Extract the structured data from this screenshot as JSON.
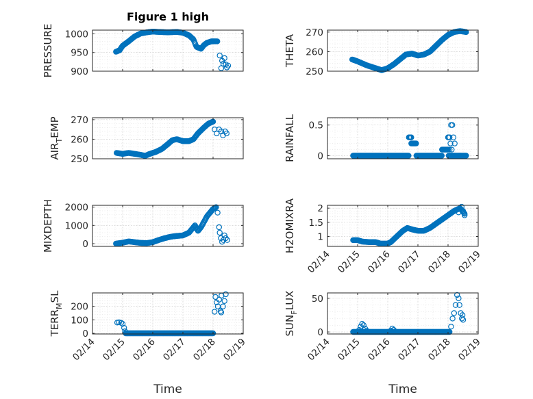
{
  "figure": {
    "title": "Figure 1 high",
    "marker_color": "#0072BD",
    "xlabel": "Time"
  },
  "chart_data": [
    {
      "type": "scatter",
      "name": "pressure-panel",
      "ylabel": "PRESSURE",
      "ylim": [
        900,
        1010
      ],
      "yticks": [
        900,
        950,
        1000
      ],
      "ytick_labels": [
        "900",
        "950",
        "1000"
      ],
      "xlim": [
        0,
        5
      ],
      "xticks": [
        0,
        1,
        2,
        3,
        4,
        5
      ],
      "xtick_labels": [
        "02/14",
        "02/15",
        "02/16",
        "02/17",
        "02/18",
        "02/19"
      ],
      "show_xticklabels": false,
      "title": "Figure 1 high",
      "grid": true,
      "anchors": [
        [
          0.78,
          952
        ],
        [
          0.9,
          956
        ],
        [
          1.0,
          968
        ],
        [
          1.2,
          980
        ],
        [
          1.4,
          993
        ],
        [
          1.6,
          1001
        ],
        [
          1.8,
          1004
        ],
        [
          2.0,
          1006
        ],
        [
          2.2,
          1005
        ],
        [
          2.5,
          1004
        ],
        [
          2.8,
          1005
        ],
        [
          3.0,
          1003
        ],
        [
          3.2,
          996
        ],
        [
          3.35,
          985
        ],
        [
          3.45,
          965
        ],
        [
          3.6,
          960
        ],
        [
          3.7,
          970
        ],
        [
          3.8,
          976
        ],
        [
          3.95,
          980
        ],
        [
          4.15,
          980
        ]
      ],
      "step": 0.02,
      "extra_points": [
        [
          4.22,
          942
        ],
        [
          4.27,
          908
        ],
        [
          4.3,
          928
        ],
        [
          4.34,
          920
        ],
        [
          4.38,
          935
        ],
        [
          4.42,
          918
        ],
        [
          4.46,
          910
        ],
        [
          4.5,
          915
        ]
      ]
    },
    {
      "type": "scatter",
      "name": "theta-panel",
      "ylabel": "THETA",
      "ylim": [
        250,
        271
      ],
      "yticks": [
        250,
        260,
        270
      ],
      "ytick_labels": [
        "250",
        "260",
        "270"
      ],
      "xlim": [
        0,
        5
      ],
      "xticks": [
        0,
        1,
        2,
        3,
        4,
        5
      ],
      "xtick_labels": [
        "02/14",
        "02/15",
        "02/16",
        "02/17",
        "02/18",
        "02/19"
      ],
      "show_xticklabels": false,
      "grid": true,
      "anchors": [
        [
          0.82,
          256
        ],
        [
          1.0,
          255
        ],
        [
          1.3,
          253
        ],
        [
          1.6,
          251.5
        ],
        [
          1.8,
          250.5
        ],
        [
          2.0,
          251.5
        ],
        [
          2.2,
          253.5
        ],
        [
          2.4,
          256
        ],
        [
          2.6,
          258.5
        ],
        [
          2.8,
          259
        ],
        [
          3.0,
          258
        ],
        [
          3.2,
          258.5
        ],
        [
          3.4,
          260
        ],
        [
          3.6,
          263
        ],
        [
          3.8,
          266
        ],
        [
          4.0,
          268.5
        ],
        [
          4.2,
          270
        ],
        [
          4.4,
          270.5
        ],
        [
          4.6,
          270
        ]
      ],
      "step": 0.02,
      "extra_points": []
    },
    {
      "type": "scatter",
      "name": "air-temp-panel",
      "ylabel": "AIR",
      "ylabel_sub": "T",
      "ylabel_tail": "EMP",
      "ylim": [
        250,
        271
      ],
      "yticks": [
        250,
        260,
        270
      ],
      "ytick_labels": [
        "250",
        "260",
        "270"
      ],
      "xlim": [
        0,
        5
      ],
      "xticks": [
        0,
        1,
        2,
        3,
        4,
        5
      ],
      "xtick_labels": [
        "02/14",
        "02/15",
        "02/16",
        "02/17",
        "02/18",
        "02/19"
      ],
      "show_xticklabels": false,
      "grid": true,
      "anchors": [
        [
          0.8,
          253
        ],
        [
          1.0,
          252.5
        ],
        [
          1.2,
          253
        ],
        [
          1.4,
          252.5
        ],
        [
          1.6,
          252
        ],
        [
          1.75,
          251.5
        ],
        [
          1.9,
          252.5
        ],
        [
          2.1,
          253.5
        ],
        [
          2.3,
          255
        ],
        [
          2.5,
          257.5
        ],
        [
          2.65,
          259.5
        ],
        [
          2.8,
          260
        ],
        [
          3.0,
          259
        ],
        [
          3.2,
          259
        ],
        [
          3.35,
          260
        ],
        [
          3.5,
          263
        ],
        [
          3.7,
          266
        ],
        [
          3.85,
          268
        ],
        [
          4.0,
          269
        ]
      ],
      "step": 0.02,
      "extra_points": [
        [
          4.05,
          265
        ],
        [
          4.12,
          263
        ],
        [
          4.2,
          265
        ],
        [
          4.27,
          264
        ],
        [
          4.33,
          262
        ],
        [
          4.4,
          264
        ],
        [
          4.45,
          263
        ]
      ]
    },
    {
      "type": "scatter",
      "name": "rainfall-panel",
      "ylabel": "RAINFALL",
      "ylim": [
        -0.05,
        0.62
      ],
      "yticks": [
        0,
        0.5
      ],
      "ytick_labels": [
        "0",
        "0.5"
      ],
      "xlim": [
        0,
        5
      ],
      "xticks": [
        0,
        1,
        2,
        3,
        4,
        5
      ],
      "xtick_labels": [
        "02/14",
        "02/15",
        "02/16",
        "02/17",
        "02/18",
        "02/19"
      ],
      "show_xticklabels": false,
      "grid": true,
      "anchors": [],
      "segments": [
        [
          0.85,
          2.7,
          0
        ],
        [
          2.7,
          2.78,
          0.3
        ],
        [
          2.78,
          2.95,
          0.2
        ],
        [
          2.95,
          3.8,
          0
        ],
        [
          3.8,
          4.0,
          0.1
        ],
        [
          4.0,
          4.02,
          0.3
        ],
        [
          4.02,
          4.2,
          0
        ],
        [
          4.2,
          4.4,
          0
        ],
        [
          4.4,
          4.6,
          0
        ]
      ],
      "step": 0.02,
      "extra_points": [
        [
          4.05,
          0.3
        ],
        [
          4.1,
          0.5
        ],
        [
          4.14,
          0.5
        ],
        [
          4.08,
          0.2
        ],
        [
          4.18,
          0.3
        ],
        [
          4.22,
          0.2
        ],
        [
          4.05,
          0.1
        ],
        [
          4.12,
          0.1
        ]
      ]
    },
    {
      "type": "scatter",
      "name": "mixdepth-panel",
      "ylabel": "MIXDEPTH",
      "ylim": [
        -150,
        2100
      ],
      "yticks": [
        0,
        1000,
        2000
      ],
      "ytick_labels": [
        "0",
        "1000",
        "2000"
      ],
      "xlim": [
        0,
        5
      ],
      "xticks": [
        0,
        1,
        2,
        3,
        4,
        5
      ],
      "xtick_labels": [
        "02/14",
        "02/15",
        "02/16",
        "02/17",
        "02/18",
        "02/19"
      ],
      "show_xticklabels": false,
      "grid": true,
      "anchors": [
        [
          0.78,
          0
        ],
        [
          1.0,
          50
        ],
        [
          1.2,
          120
        ],
        [
          1.4,
          80
        ],
        [
          1.6,
          40
        ],
        [
          1.8,
          30
        ],
        [
          2.0,
          80
        ],
        [
          2.2,
          200
        ],
        [
          2.4,
          300
        ],
        [
          2.6,
          380
        ],
        [
          2.8,
          420
        ],
        [
          3.0,
          450
        ],
        [
          3.2,
          600
        ],
        [
          3.3,
          800
        ],
        [
          3.4,
          1000
        ],
        [
          3.5,
          700
        ],
        [
          3.6,
          900
        ],
        [
          3.7,
          1200
        ],
        [
          3.8,
          1500
        ],
        [
          3.9,
          1700
        ],
        [
          4.0,
          1900
        ],
        [
          4.1,
          2000
        ]
      ],
      "step": 0.02,
      "extra_points": [
        [
          4.15,
          1700
        ],
        [
          4.2,
          900
        ],
        [
          4.22,
          600
        ],
        [
          4.26,
          300
        ],
        [
          4.3,
          100
        ],
        [
          4.34,
          200
        ],
        [
          4.38,
          450
        ],
        [
          4.42,
          300
        ],
        [
          4.47,
          200
        ]
      ]
    },
    {
      "type": "scatter",
      "name": "h2omixra-panel",
      "ylabel": "H2OMIXRA",
      "ylim": [
        0.65,
        2.1
      ],
      "yticks": [
        1,
        1.5,
        2
      ],
      "ytick_labels": [
        "1",
        "1.5",
        "2"
      ],
      "xlim": [
        0,
        5
      ],
      "xticks": [
        0,
        1,
        2,
        3,
        4,
        5
      ],
      "xtick_labels": [
        "02/14",
        "02/15",
        "02/16",
        "02/17",
        "02/18",
        "02/19"
      ],
      "show_xticklabels": true,
      "grid": true,
      "anchors": [
        [
          0.85,
          0.87
        ],
        [
          1.0,
          0.87
        ],
        [
          1.15,
          0.82
        ],
        [
          1.4,
          0.8
        ],
        [
          1.6,
          0.8
        ],
        [
          1.75,
          0.75
        ],
        [
          2.0,
          0.75
        ],
        [
          2.1,
          0.8
        ],
        [
          2.3,
          1.0
        ],
        [
          2.5,
          1.2
        ],
        [
          2.65,
          1.3
        ],
        [
          2.8,
          1.25
        ],
        [
          3.0,
          1.2
        ],
        [
          3.2,
          1.2
        ],
        [
          3.4,
          1.3
        ],
        [
          3.6,
          1.45
        ],
        [
          3.8,
          1.6
        ],
        [
          4.0,
          1.75
        ],
        [
          4.2,
          1.9
        ],
        [
          4.4,
          2.0
        ],
        [
          4.55,
          1.8
        ]
      ],
      "step": 0.02,
      "extra_points": [
        [
          4.35,
          1.85
        ],
        [
          4.45,
          2.05
        ],
        [
          4.5,
          1.9
        ],
        [
          4.55,
          1.75
        ]
      ]
    },
    {
      "type": "scatter",
      "name": "terr-msl-panel",
      "ylabel": "TERR",
      "ylabel_sub": "M",
      "ylabel_tail": "SL",
      "ylim": [
        -5,
        300
      ],
      "yticks": [
        0,
        100,
        200
      ],
      "ytick_labels": [
        "0",
        "100",
        "200"
      ],
      "xlim": [
        0,
        5
      ],
      "xticks": [
        0,
        1,
        2,
        3,
        4,
        5
      ],
      "xtick_labels": [
        "02/14",
        "02/15",
        "02/16",
        "02/17",
        "02/18",
        "02/19"
      ],
      "show_xticklabels": true,
      "grid": true,
      "anchors": [
        [
          1.1,
          0
        ],
        [
          4.0,
          0
        ]
      ],
      "step": 0.02,
      "extra_points": [
        [
          0.82,
          80
        ],
        [
          0.88,
          82
        ],
        [
          0.95,
          78
        ],
        [
          1.0,
          70
        ],
        [
          1.05,
          40
        ],
        [
          1.08,
          15
        ],
        [
          4.05,
          160
        ],
        [
          4.08,
          270
        ],
        [
          4.12,
          230
        ],
        [
          4.16,
          200
        ],
        [
          4.2,
          250
        ],
        [
          4.25,
          165
        ],
        [
          4.28,
          280
        ],
        [
          4.33,
          200
        ],
        [
          4.38,
          240
        ],
        [
          4.42,
          290
        ],
        [
          4.27,
          155
        ]
      ]
    },
    {
      "type": "scatter",
      "name": "sun-flux-panel",
      "ylabel": "SUN",
      "ylabel_sub": "F",
      "ylabel_tail": "LUX",
      "ylim": [
        -3,
        58
      ],
      "yticks": [
        0,
        50
      ],
      "ytick_labels": [
        "0",
        "50"
      ],
      "xlim": [
        0,
        5
      ],
      "xticks": [
        0,
        1,
        2,
        3,
        4,
        5
      ],
      "xtick_labels": [
        "02/14",
        "02/15",
        "02/16",
        "02/17",
        "02/18",
        "02/19"
      ],
      "show_xticklabels": true,
      "grid": true,
      "anchors": [
        [
          0.85,
          0
        ],
        [
          4.05,
          0
        ]
      ],
      "step": 0.02,
      "extra_points": [
        [
          1.05,
          3
        ],
        [
          1.1,
          8
        ],
        [
          1.15,
          12
        ],
        [
          1.2,
          10
        ],
        [
          1.25,
          5
        ],
        [
          1.3,
          2
        ],
        [
          2.1,
          2
        ],
        [
          2.15,
          5
        ],
        [
          2.2,
          3
        ],
        [
          4.1,
          8
        ],
        [
          4.15,
          20
        ],
        [
          4.2,
          28
        ],
        [
          4.25,
          40
        ],
        [
          4.3,
          55
        ],
        [
          4.35,
          50
        ],
        [
          4.38,
          40
        ],
        [
          4.42,
          28
        ],
        [
          4.46,
          20
        ],
        [
          4.5,
          18
        ],
        [
          4.48,
          25
        ]
      ]
    }
  ]
}
